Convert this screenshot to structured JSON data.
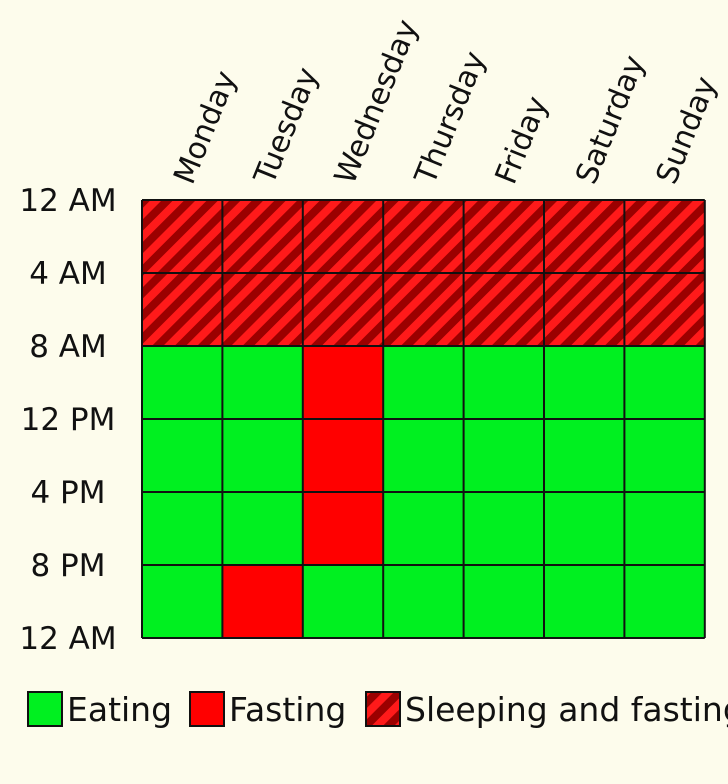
{
  "chart_data": {
    "type": "heatmap",
    "days": [
      "Monday",
      "Tuesday",
      "Wednesday",
      "Thursday",
      "Friday",
      "Saturday",
      "Sunday"
    ],
    "time_labels": [
      "12 AM",
      "4 AM",
      "8 AM",
      "12 PM",
      "4 PM",
      "8 PM",
      "12 AM"
    ],
    "status_keys": [
      "eating",
      "fasting",
      "sleeping"
    ],
    "grid": [
      [
        "sleeping",
        "sleeping",
        "sleeping",
        "sleeping",
        "sleeping",
        "sleeping",
        "sleeping"
      ],
      [
        "sleeping",
        "sleeping",
        "sleeping",
        "sleeping",
        "sleeping",
        "sleeping",
        "sleeping"
      ],
      [
        "eating",
        "eating",
        "fasting",
        "eating",
        "eating",
        "eating",
        "eating"
      ],
      [
        "eating",
        "eating",
        "fasting",
        "eating",
        "eating",
        "eating",
        "eating"
      ],
      [
        "eating",
        "eating",
        "fasting",
        "eating",
        "eating",
        "eating",
        "eating"
      ],
      [
        "eating",
        "fasting",
        "eating",
        "eating",
        "eating",
        "eating",
        "eating"
      ]
    ],
    "legend": [
      {
        "key": "eating",
        "label": "Eating"
      },
      {
        "key": "fasting",
        "label": "Fasting"
      },
      {
        "key": "sleeping",
        "label": "Sleeping and fasting"
      }
    ],
    "colors": {
      "eating": "#00f020",
      "fasting": "#ff0000",
      "sleeping_base": "#ff1a1a",
      "sleeping_stripe": "#9b0000",
      "grid_line": "#111111",
      "background": "#fdfcec"
    }
  }
}
